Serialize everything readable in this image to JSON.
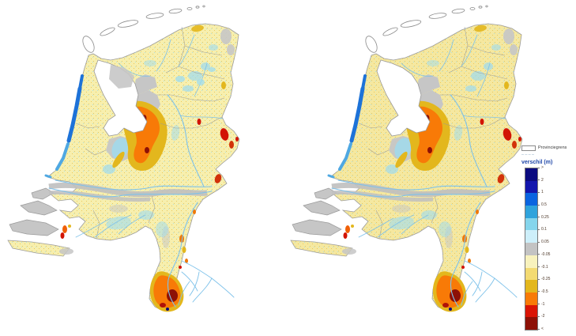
{
  "maps": {
    "depicts": "Netherlands groundwater difference maps, two panels side by side",
    "panels": [
      {
        "id": "left",
        "description": "difference map, panel 1"
      },
      {
        "id": "right",
        "description": "difference map, panel 2"
      }
    ]
  },
  "legend": {
    "items": [
      {
        "label": "Provinciegrens",
        "swatch": "white-outline-box"
      },
      {
        "label": "",
        "swatch": "faint-dashed-line"
      }
    ],
    "title": "verschil (m)",
    "colorbar": {
      "tick_labels": [
        ">",
        "2",
        "1",
        "0.5",
        "0.25",
        "0.1",
        "0.05",
        "-0.05",
        "-0.1",
        "-0.25",
        "-0.5",
        "-1",
        "-2",
        "<"
      ],
      "segments": [
        {
          "color": "#0b0b80",
          "range": "> 2"
        },
        {
          "color": "#1316ad",
          "range": "1 to 2"
        },
        {
          "color": "#0a64e0",
          "range": "0.5 to 1"
        },
        {
          "color": "#2fa3dc",
          "range": "0.25 to 0.5"
        },
        {
          "color": "#85d5ec",
          "range": "0.1 to 0.25"
        },
        {
          "color": "#cdeffa",
          "range": "0.05 to 0.1"
        },
        {
          "color": "#c3c3c3",
          "range": "-0.05 to 0.05"
        },
        {
          "color": "#f8f2bd",
          "range": "-0.1 to -0.05"
        },
        {
          "color": "#f3da72",
          "range": "-0.25 to -0.1"
        },
        {
          "color": "#e3b71d",
          "range": "-0.5 to -0.25"
        },
        {
          "color": "#f87a07",
          "range": "-1 to -0.5"
        },
        {
          "color": "#da1405",
          "range": "-2 to -1"
        },
        {
          "color": "#8d1006",
          "range": "< -2"
        }
      ]
    }
  },
  "colors": {
    "base_left": "#f7efae",
    "base_right": "#f5e8a0",
    "no_data_gray": "#c6c6c6",
    "border_gray": "#9a9a9a",
    "river_blue": "#7ec2ea",
    "dune_blue": "#1d72d8",
    "shallow_blue": "#9edcf0",
    "gold": "#e3b71d",
    "orange": "#f87a07",
    "red": "#d21405",
    "dark_red": "#8d1006",
    "navy": "#0b0b80",
    "speckle_yellow": "#e6c95f",
    "legend_title_blue": "#1e46a8"
  }
}
